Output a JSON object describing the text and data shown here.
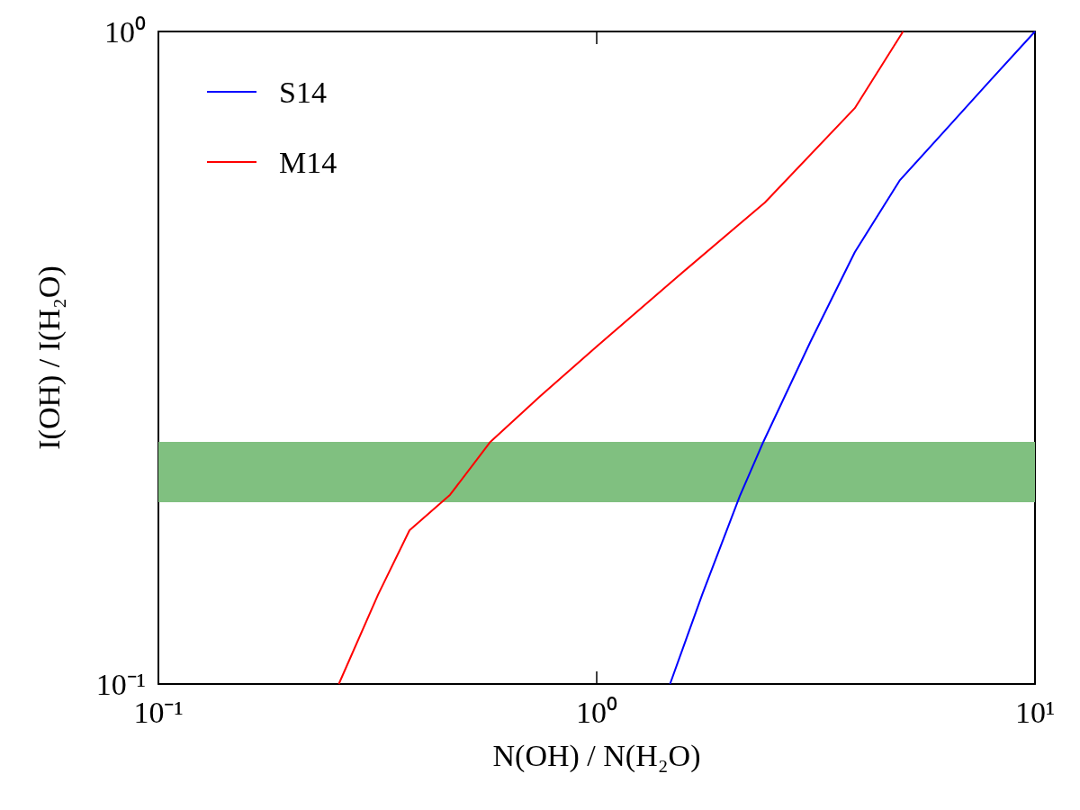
{
  "chart_data": {
    "type": "line",
    "xlabel": "N(OH) / N(H₂O)",
    "ylabel": "I(OH) / I(H₂O)",
    "log": "xy",
    "xlim": [
      0.1,
      10
    ],
    "ylim": [
      0.1,
      1
    ],
    "xticks": [
      {
        "value": 0.1,
        "label": "10⁻¹"
      },
      {
        "value": 1,
        "label": "10⁰"
      },
      {
        "value": 10,
        "label": "10¹"
      }
    ],
    "yticks": [
      {
        "value": 0.1,
        "label": "10⁻¹"
      },
      {
        "value": 1,
        "label": "10⁰"
      }
    ],
    "legend": "top left",
    "marker": "none",
    "line_style": "solid",
    "grid": false,
    "series": [
      {
        "name": "S14",
        "color": "#0000ff",
        "x": [
          1.47,
          1.74,
          2.12,
          2.4,
          3.07,
          3.88,
          4.92,
          6.23,
          7.89,
          10
        ],
        "values": [
          0.1,
          0.137,
          0.194,
          0.235,
          0.334,
          0.459,
          0.592,
          0.705,
          0.84,
          1
        ]
      },
      {
        "name": "M14",
        "color": "#ff0000",
        "x": [
          0.258,
          0.317,
          0.374,
          0.463,
          0.572,
          0.743,
          1,
          1.51,
          2.42,
          3.88,
          5.0
        ],
        "values": [
          0.1,
          0.137,
          0.172,
          0.195,
          0.235,
          0.276,
          0.329,
          0.418,
          0.547,
          0.763,
          1
        ]
      }
    ],
    "bands": [
      {
        "axis": "y",
        "from": 0.19,
        "to": 0.235,
        "color": "#80c080"
      }
    ]
  }
}
